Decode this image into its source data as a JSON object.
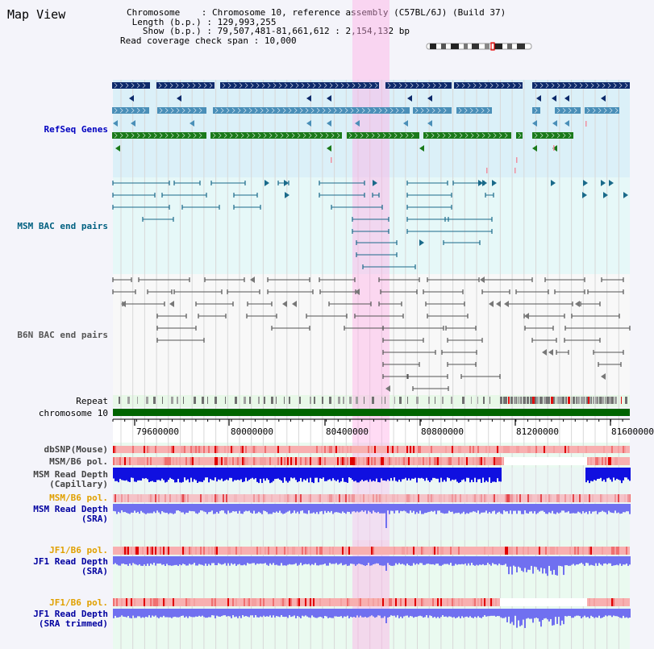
{
  "title": "Map View",
  "info": {
    "chromosome_label": "Chromosome",
    "chromosome_value": "Chromosome 10, reference assembly (C57BL/6J) (Build 37)",
    "length_label": "Length (b.p.)",
    "length_value": "129,993,255",
    "show_label": "Show (b.p.)",
    "show_value": "79,507,481-81,661,612 : 2,154,132 bp",
    "coverage_label": "Read coverage check span",
    "coverage_value": "10,000"
  },
  "tracks": {
    "refseq": "RefSeq Genes",
    "msm_bac": "MSM BAC end pairs",
    "b6n_bac": "B6N BAC end pairs",
    "repeat": "Repeat",
    "chromosome": "chromosome 10",
    "dbsnp": "dbSNP(Mouse)",
    "msm_b6_pol_1": "MSM/B6 pol.",
    "msm_read_depth_cap_1": "MSM Read Depth",
    "msm_read_depth_cap_2": "(Capillary)",
    "msm_b6_pol_2": "MSM/B6 pol.",
    "msm_read_depth_sra_1": "MSM Read Depth",
    "msm_read_depth_sra_2": "(SRA)",
    "jf1_b6_pol_1": "JF1/B6 pol.",
    "jf1_read_depth_sra_1": "JF1 Read Depth",
    "jf1_read_depth_sra_2": "(SRA)",
    "jf1_b6_pol_2": "JF1/B6 pol.",
    "jf1_read_depth_trim_1": "JF1 Read Depth",
    "jf1_read_depth_trim_2": "(SRA trimmed)"
  },
  "axis": {
    "ticks": [
      "79600000",
      "80000000",
      "80400000",
      "80800000",
      "81200000",
      "81600000"
    ]
  },
  "colors": {
    "refseq_dark": "#0d2a6b",
    "refseq_light": "#4a8fb8",
    "refseq_green": "#1a7a1a",
    "bac_line": "#1a6a8a",
    "b6n_line": "#555555",
    "chromosome_bar": "#006400",
    "highlight": "#ffb0e6",
    "depth_blue": "#1010e0",
    "depth_light_blue": "#7070f0",
    "pol_pink": "#f8b0b0",
    "label_blue": "#0000a0",
    "label_orange": "#e0a000"
  }
}
